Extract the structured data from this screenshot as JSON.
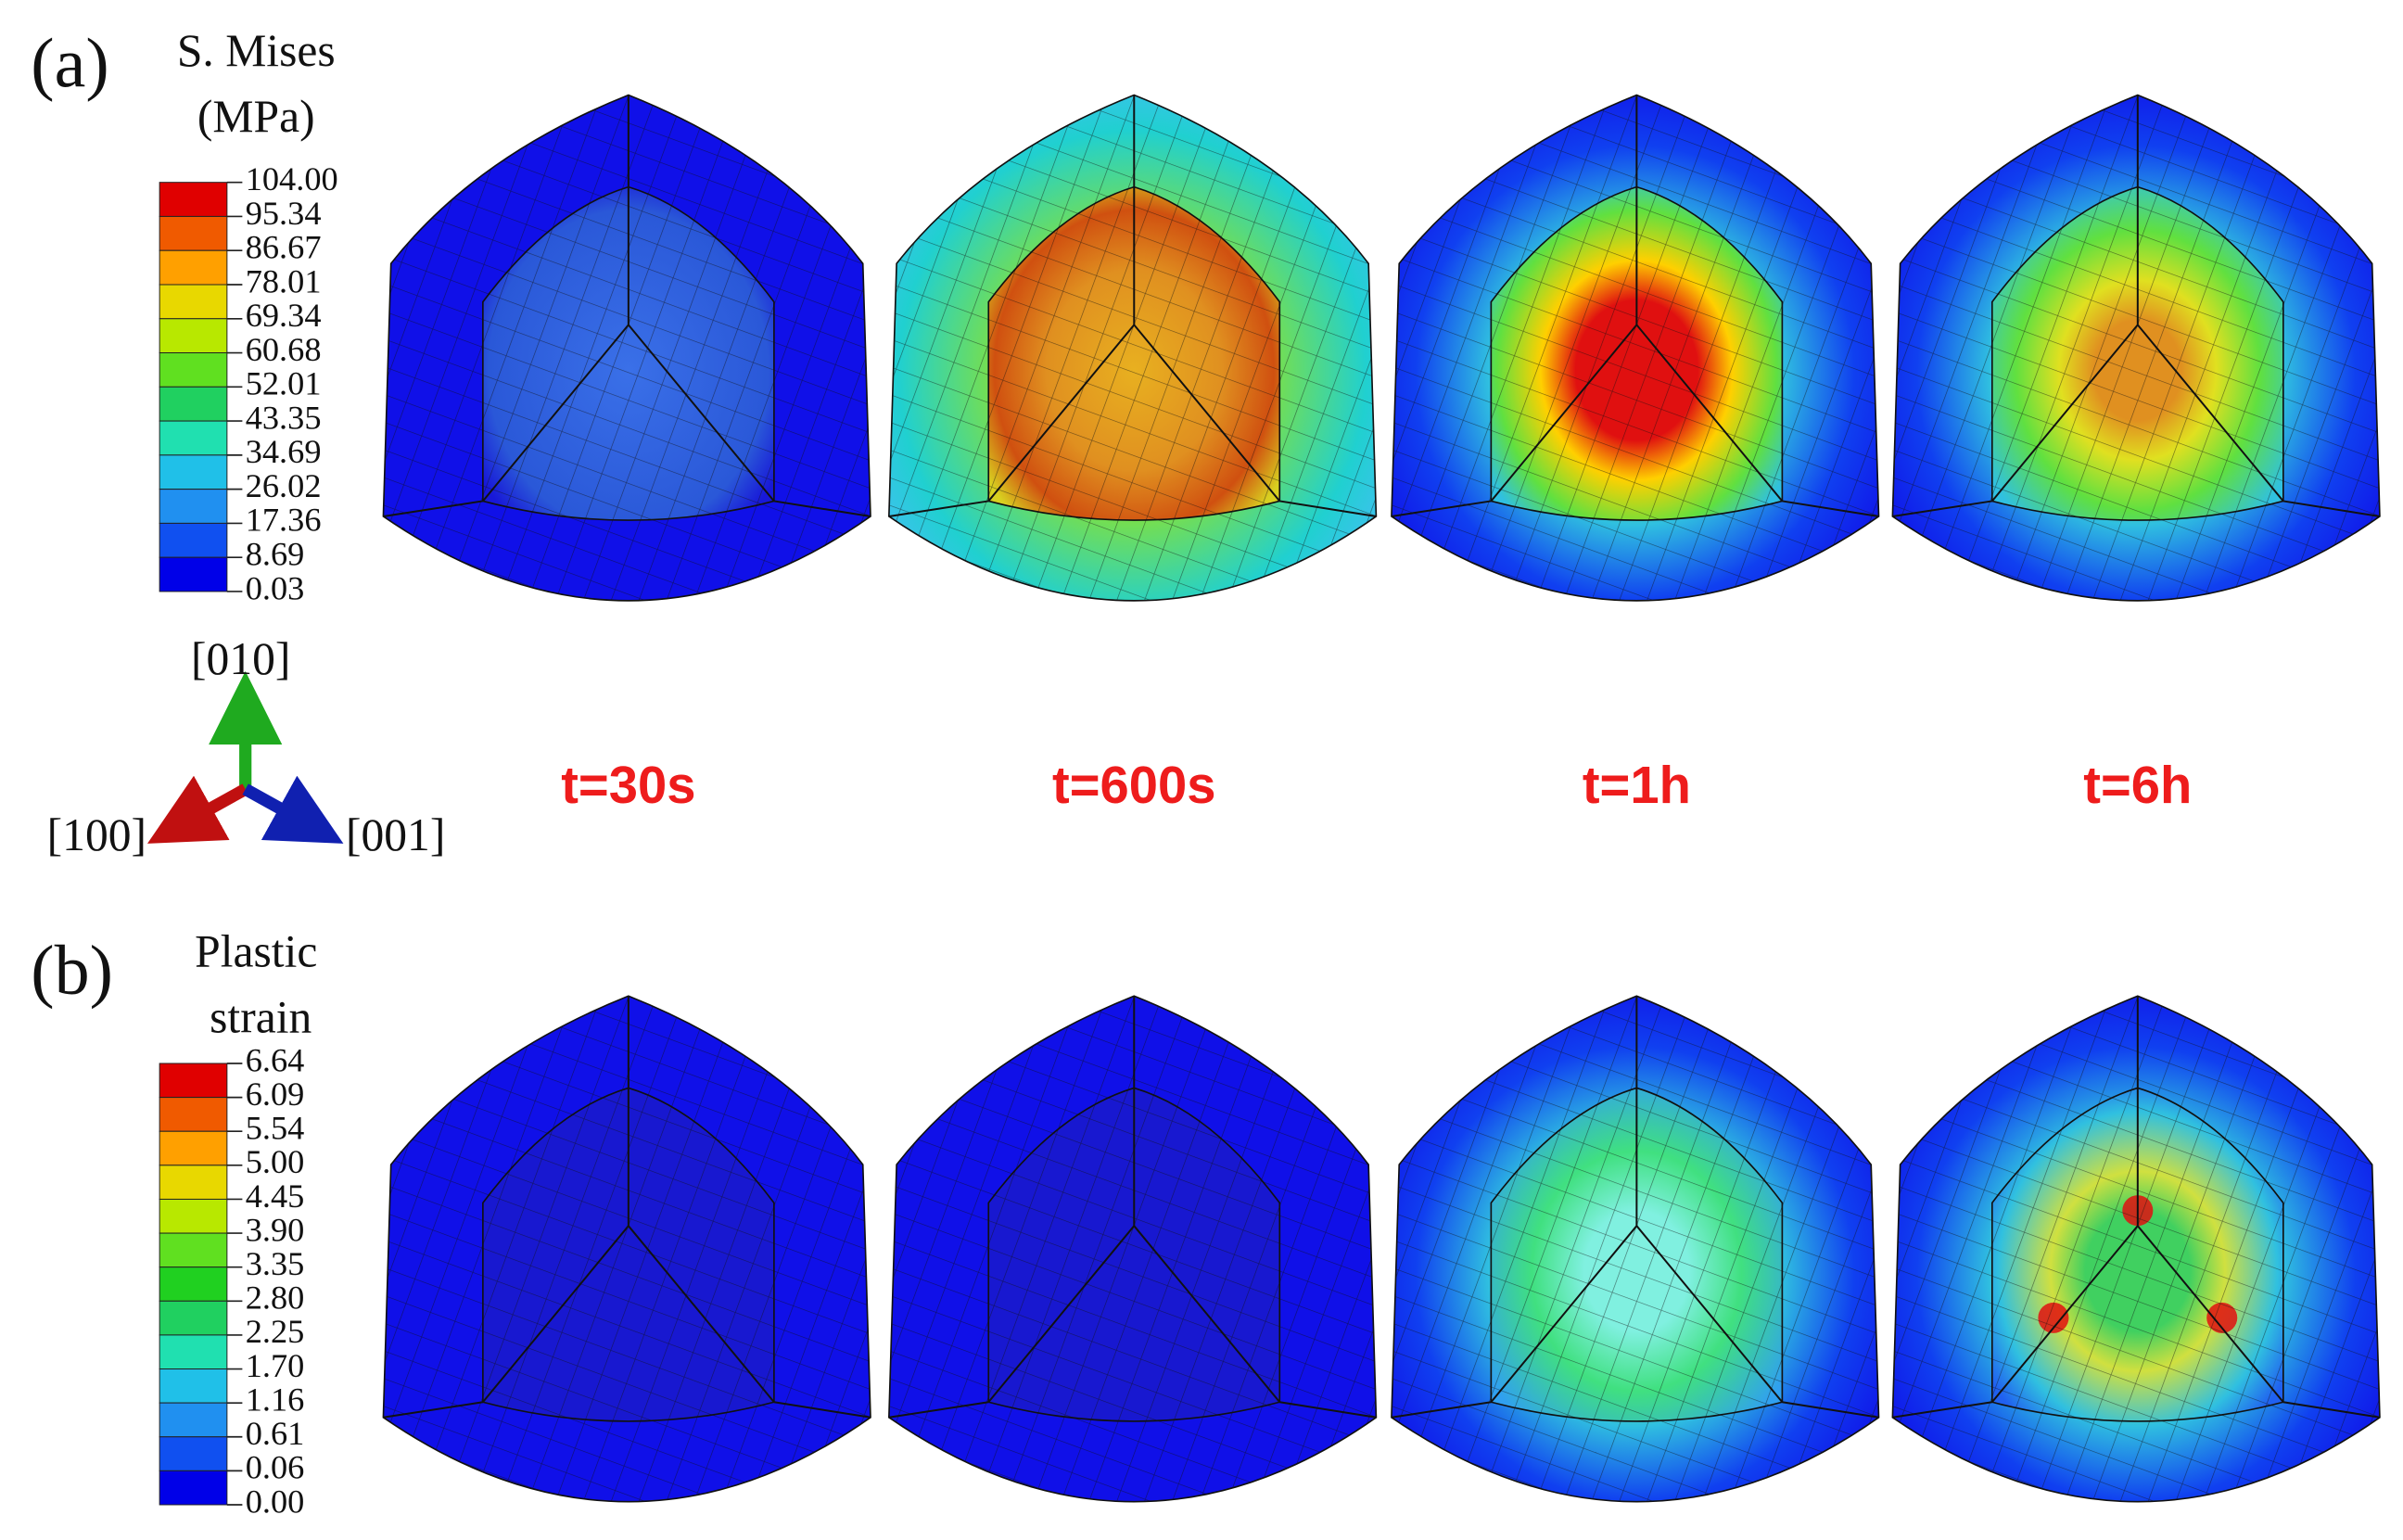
{
  "panel_a": {
    "label": "(a)",
    "legend_title": [
      "S. Mises",
      "(MPa)"
    ],
    "legend_labels": [
      "104.00",
      "95.34",
      "86.67",
      "78.01",
      "69.34",
      "60.68",
      "52.01",
      "43.35",
      "34.69",
      "26.02",
      "17.36",
      "8.69",
      "0.03"
    ]
  },
  "panel_b": {
    "label": "(b)",
    "legend_title": [
      "Plastic",
      "strain"
    ],
    "legend_labels": [
      "6.64",
      "6.09",
      "5.54",
      "5.00",
      "4.45",
      "3.90",
      "3.35",
      "2.80",
      "2.25",
      "1.70",
      "1.16",
      "0.61",
      "0.06",
      "0.00"
    ]
  },
  "axes": {
    "y": "[010]",
    "x": "[100]",
    "z": "[001]"
  },
  "times": [
    "t=30s",
    "t=600s",
    "t=1h",
    "t=6h"
  ]
}
